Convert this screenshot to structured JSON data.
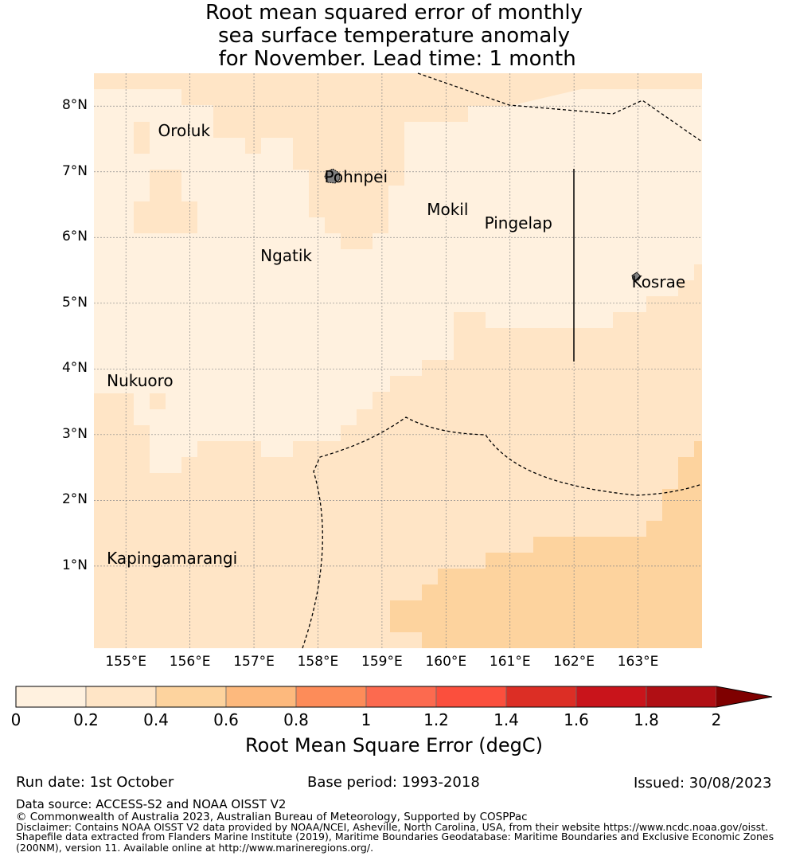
{
  "title": {
    "line1": "Root mean squared error of monthly",
    "line2": "sea surface temperature anomaly",
    "line3": " for November. Lead time: 1 month"
  },
  "map": {
    "lat_range": [
      -0.25,
      8.5
    ],
    "lon_range": [
      154.5,
      164.0
    ],
    "y_ticks": [
      {
        "label": "8°N",
        "value": 8
      },
      {
        "label": "7°N",
        "value": 7
      },
      {
        "label": "6°N",
        "value": 6
      },
      {
        "label": "5°N",
        "value": 5
      },
      {
        "label": "4°N",
        "value": 4
      },
      {
        "label": "3°N",
        "value": 3
      },
      {
        "label": "2°N",
        "value": 2
      },
      {
        "label": "1°N",
        "value": 1
      }
    ],
    "x_ticks": [
      {
        "label": "155°E",
        "value": 155
      },
      {
        "label": "156°E",
        "value": 156
      },
      {
        "label": "157°E",
        "value": 157
      },
      {
        "label": "158°E",
        "value": 158
      },
      {
        "label": "159°E",
        "value": 159
      },
      {
        "label": "160°E",
        "value": 160
      },
      {
        "label": "161°E",
        "value": 161
      },
      {
        "label": "162°E",
        "value": 162
      },
      {
        "label": "163°E",
        "value": 163
      }
    ],
    "places": [
      {
        "name": "Oroluk",
        "lon": 155.6,
        "lat": 7.6
      },
      {
        "name": "Pohnpei",
        "lon": 158.2,
        "lat": 6.9
      },
      {
        "name": "Mokil",
        "lon": 159.8,
        "lat": 6.4
      },
      {
        "name": "Pingelap",
        "lon": 160.7,
        "lat": 6.2
      },
      {
        "name": "Ngatik",
        "lon": 157.2,
        "lat": 5.7
      },
      {
        "name": "Kosrae",
        "lon": 163.0,
        "lat": 5.3
      },
      {
        "name": "Nukuoro",
        "lon": 154.8,
        "lat": 3.8
      },
      {
        "name": "Kapingamarangi",
        "lon": 154.8,
        "lat": 1.1
      }
    ]
  },
  "colorbar": {
    "ticks": [
      "0",
      "0.2",
      "0.4",
      "0.6",
      "0.8",
      "1",
      "1.2",
      "1.4",
      "1.6",
      "1.8",
      "2"
    ],
    "colors": [
      "#fff1df",
      "#ffe5c6",
      "#fdd39e",
      "#fdb97d",
      "#fd8c59",
      "#fc6a4f",
      "#fb4f3d",
      "#dc2e25",
      "#c9141b",
      "#b00f14"
    ],
    "extend_color": "#7f0000",
    "label": "Root Mean Square Error (degC)"
  },
  "footer": {
    "run_date": "Run date: 1st October",
    "base_period": "Base period: 1993-2018",
    "issued": "Issued: 30/08/2023",
    "data_source": "Data source: ACCESS-S2 and NOAA OISST V2",
    "copyright": "© Commonwealth of Australia 2023, Australian Bureau of Meteorology, Supported by COSPPac",
    "disclaimer1": "Disclaimer: Contains NOAA OISST V2 data provided by NOAA/NCEI, Asheville, North Carolina, USA, from their website https://www.ncdc.noaa.gov/oisst.",
    "disclaimer2": "Shapefile data extracted from Flanders Marine Institute (2019), Maritime Boundaries Geodatabase: Maritime Boundaries and Exclusive Economic Zones",
    "disclaimer3": "(200NM), version 11. Available online at http://www.marineregions.org/."
  }
}
